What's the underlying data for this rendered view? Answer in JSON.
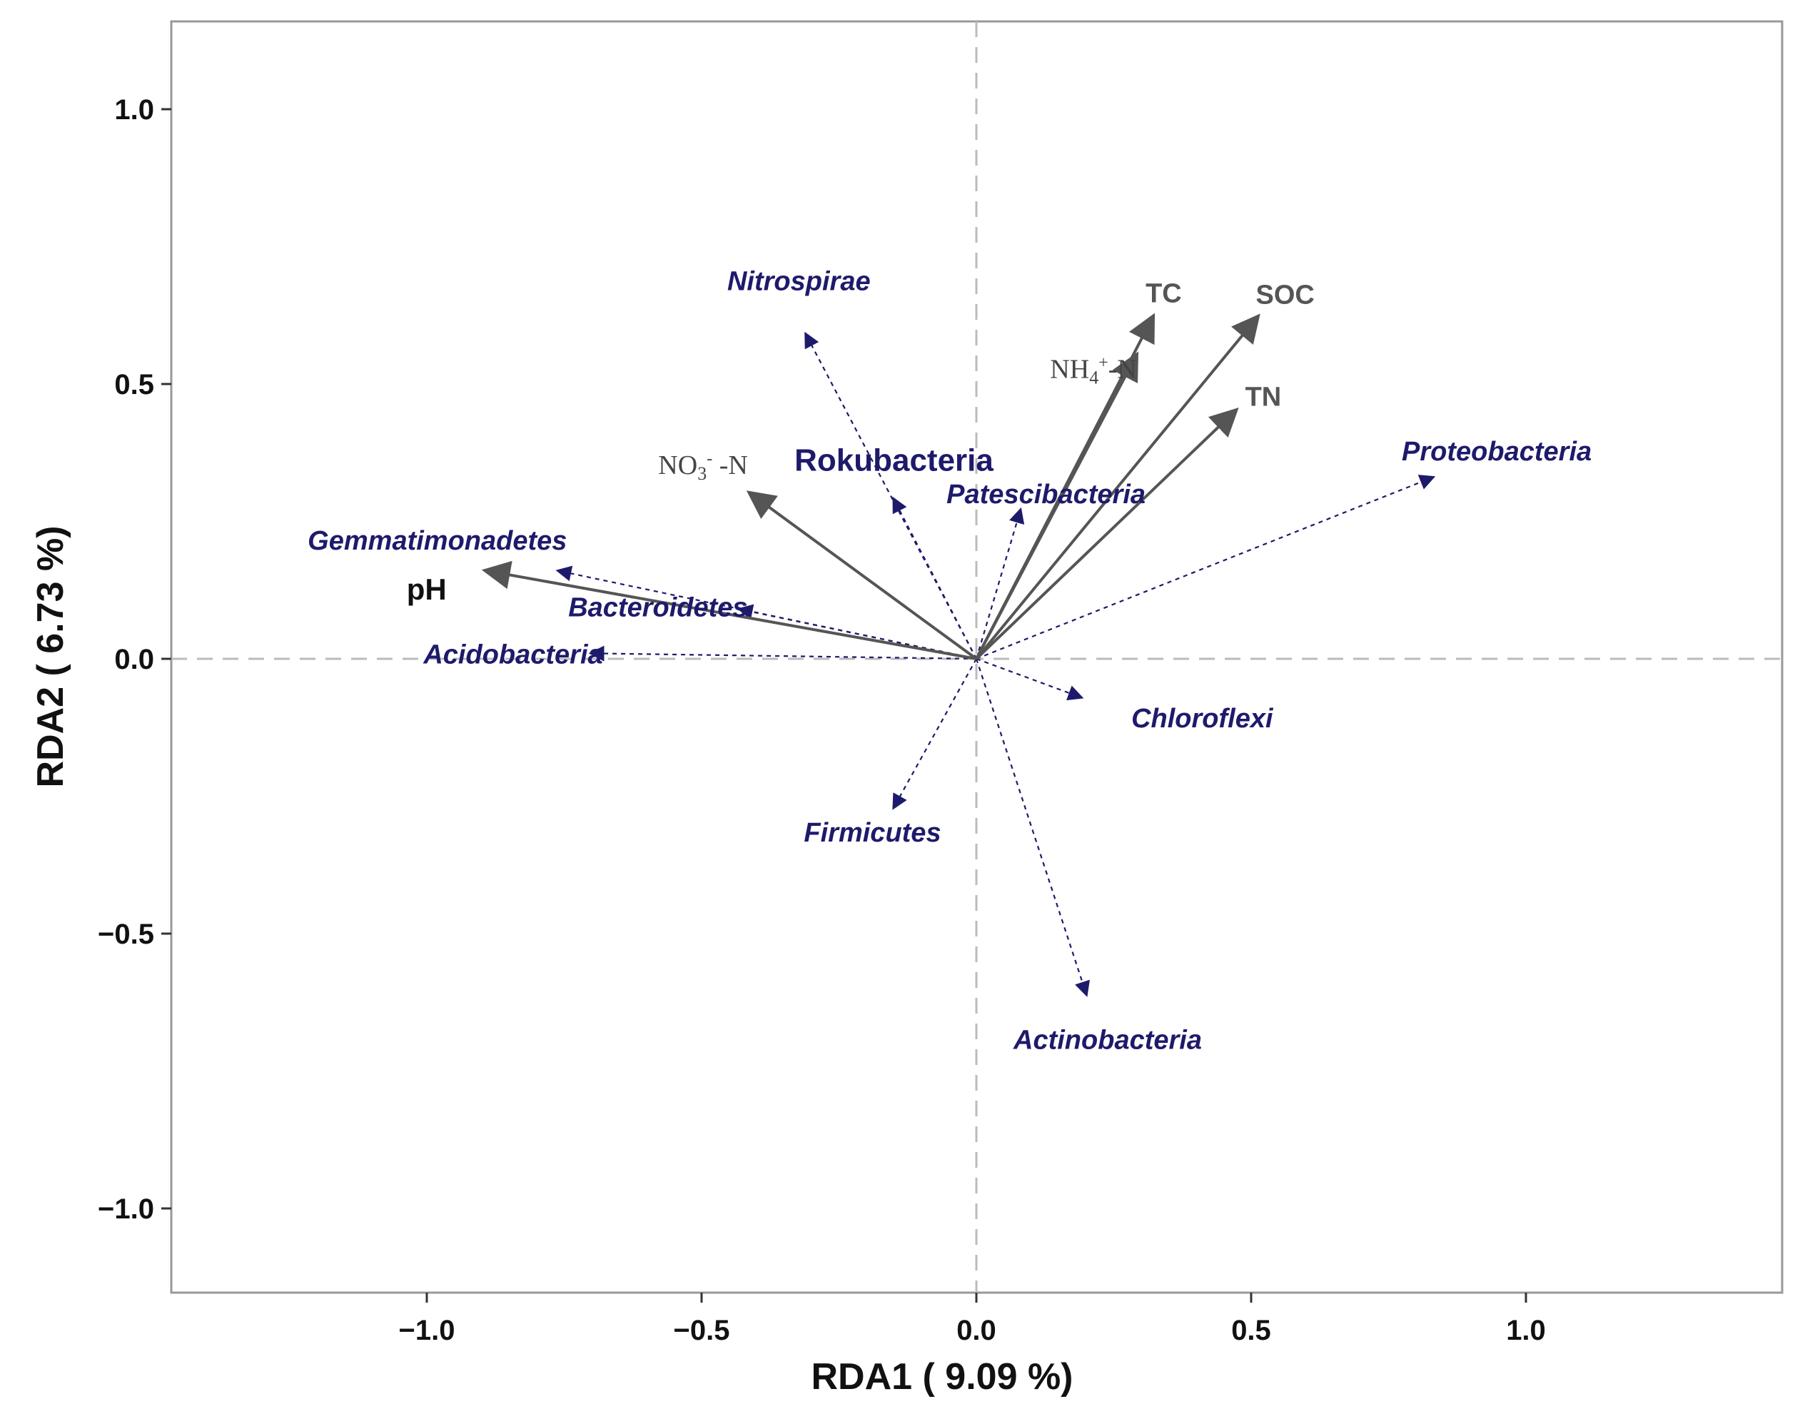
{
  "chart_data": {
    "type": "scatter",
    "subtype": "rda-biplot",
    "title": "",
    "xlabel": "RDA1 ( 9.09 %)",
    "ylabel": "RDA2 ( 6.73 %)",
    "xlim": [
      -1.47,
      1.47
    ],
    "ylim": [
      -1.47,
      1.47
    ],
    "xticks": [
      {
        "value": -1.0,
        "label": "−1.0"
      },
      {
        "value": -0.5,
        "label": "−0.5"
      },
      {
        "value": 0.0,
        "label": "0.0"
      },
      {
        "value": 0.5,
        "label": "0.5"
      },
      {
        "value": 1.0,
        "label": "1.0"
      }
    ],
    "yticks": [
      {
        "value": -1.0,
        "label": "−1.0"
      },
      {
        "value": -0.5,
        "label": "−0.5"
      },
      {
        "value": 0.0,
        "label": "0.0"
      },
      {
        "value": 0.5,
        "label": "0.5"
      },
      {
        "value": 1.0,
        "label": "1.0"
      }
    ],
    "grid": false,
    "zero_lines": true,
    "colors": {
      "env_arrow": "#555555",
      "species_arrow": "#1e1a6b",
      "zero_line": "#bbbbbb",
      "frame": "#999999"
    },
    "environmental_vectors": [
      {
        "name": "TC",
        "x": 0.32,
        "y": 0.62
      },
      {
        "name": "SOC",
        "x": 0.51,
        "y": 0.62
      },
      {
        "name": "TN",
        "x": 0.47,
        "y": 0.45
      },
      {
        "name": "NH4+-N",
        "name_base": "NH",
        "name_sub": "4",
        "name_sup": "+",
        "name_tail": "-N",
        "x": 0.29,
        "y": 0.55
      },
      {
        "name": "NO3--N",
        "name_base": "NO",
        "name_sub": "3",
        "name_sup": "-",
        "name_tail": " -N",
        "x": -0.41,
        "y": 0.3
      },
      {
        "name": "pH",
        "x": -0.89,
        "y": 0.16
      }
    ],
    "species_vectors": [
      {
        "name": "Nitrospirae",
        "x": -0.31,
        "y": 0.59
      },
      {
        "name": "Rokubacteria",
        "x": -0.15,
        "y": 0.29
      },
      {
        "name": "Patescibacteria",
        "x": 0.08,
        "y": 0.27
      },
      {
        "name": "Proteobacteria",
        "x": 0.83,
        "y": 0.33
      },
      {
        "name": "Gemmatimonadetes",
        "x": -0.76,
        "y": 0.16
      },
      {
        "name": "Bacteroidetes",
        "x": -0.43,
        "y": 0.09
      },
      {
        "name": "Acidobacteria",
        "x": -0.7,
        "y": 0.01
      },
      {
        "name": "Chloroflexi",
        "x": 0.19,
        "y": -0.07
      },
      {
        "name": "Firmicutes",
        "x": -0.15,
        "y": -0.27
      },
      {
        "name": "Actinobacteria",
        "x": 0.2,
        "y": -0.61
      }
    ]
  }
}
